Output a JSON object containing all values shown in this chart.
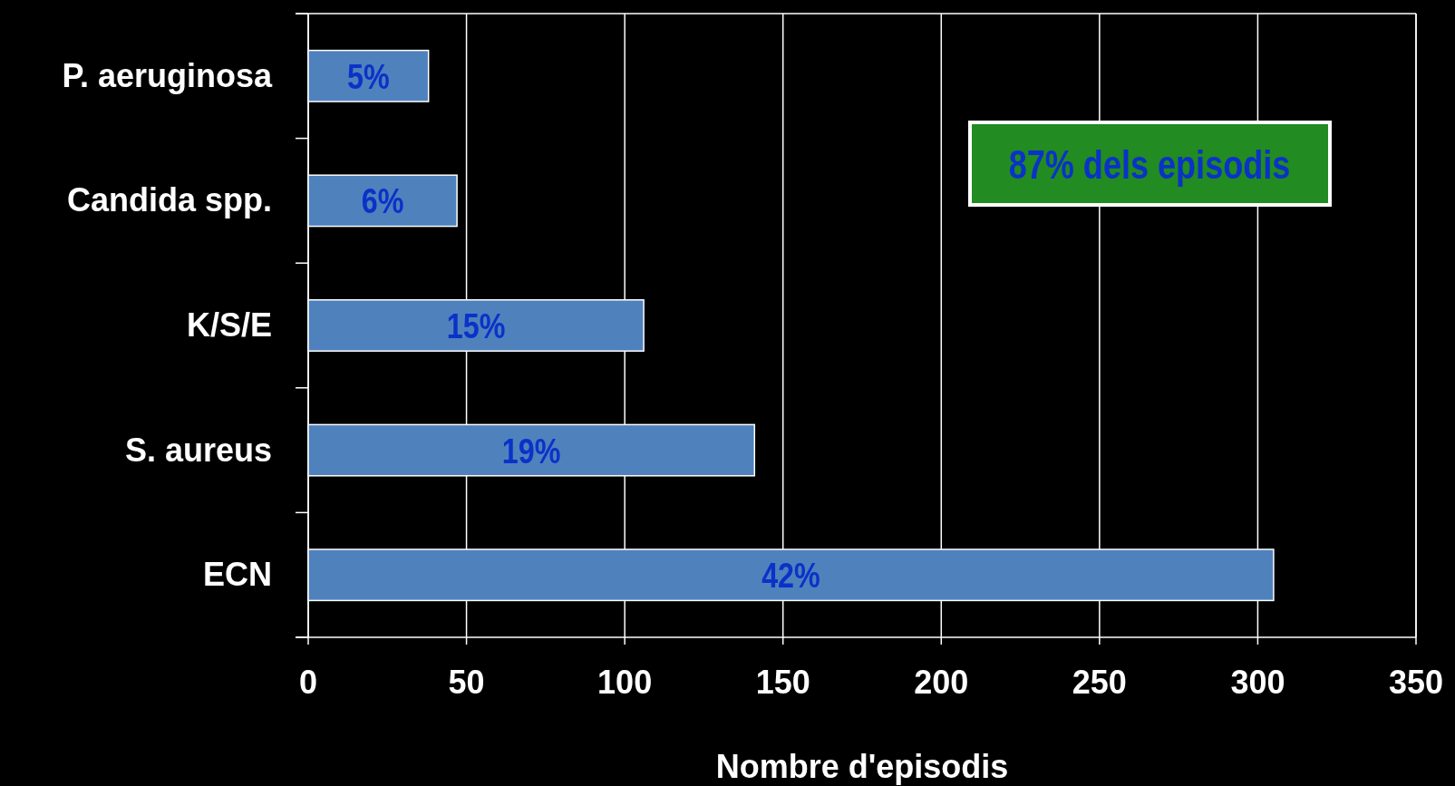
{
  "chart_data": {
    "type": "bar",
    "orientation": "horizontal",
    "xlabel": "Nombre d'episodis",
    "categories": [
      "P. aeruginosa",
      "Candida spp.",
      "K/S/E",
      "S. aureus",
      "ECN"
    ],
    "values": [
      38,
      47,
      106,
      141,
      305
    ],
    "color": "#4f81bd",
    "xlim": [
      0,
      350
    ],
    "xticks": [
      0,
      50,
      100,
      150,
      200,
      250,
      300,
      350
    ],
    "grid": "x",
    "annotations": [
      "5%",
      "6%",
      "15%",
      "19%",
      "42%",
      "87% dels episodis"
    ]
  }
}
